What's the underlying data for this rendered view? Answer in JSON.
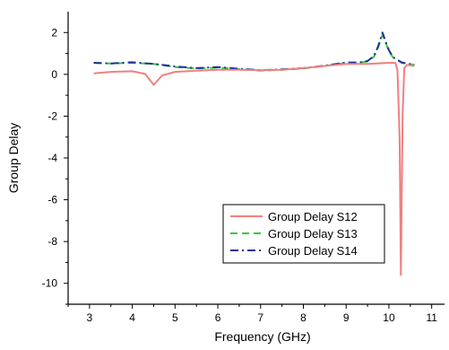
{
  "chart_data": {
    "type": "line",
    "title": "",
    "xlabel": "Frequency (GHz)",
    "ylabel": "Group Delay",
    "xlim": [
      2.5,
      11.3
    ],
    "ylim": [
      -11,
      3
    ],
    "xticks": [
      3,
      4,
      5,
      6,
      7,
      8,
      9,
      10,
      11
    ],
    "yticks": [
      2,
      0,
      -2,
      -4,
      -6,
      -8,
      -10
    ],
    "grid": false,
    "legend_position": "lower-right",
    "series": [
      {
        "name": "Group Delay S12",
        "color": "#f08080",
        "dash": "solid",
        "x": [
          3.1,
          3.5,
          4.0,
          4.3,
          4.5,
          4.7,
          5.0,
          5.5,
          6.0,
          6.5,
          7.0,
          7.5,
          8.0,
          8.5,
          9.0,
          9.5,
          10.0,
          10.15,
          10.2,
          10.25,
          10.28,
          10.32,
          10.36,
          10.42,
          10.6
        ],
        "y": [
          0.05,
          0.12,
          0.15,
          0.02,
          -0.5,
          -0.05,
          0.12,
          0.18,
          0.22,
          0.22,
          0.2,
          0.22,
          0.3,
          0.4,
          0.5,
          0.5,
          0.55,
          0.55,
          0.2,
          -3.0,
          -9.6,
          -2.0,
          0.3,
          0.45,
          0.4
        ]
      },
      {
        "name": "Group Delay S13",
        "color": "#33cc33",
        "dash": "dashed",
        "x": [
          3.1,
          3.5,
          4.0,
          4.5,
          5.0,
          5.5,
          6.0,
          6.5,
          7.0,
          7.5,
          8.0,
          8.5,
          9.0,
          9.3,
          9.5,
          9.65,
          9.75,
          9.85,
          9.92,
          10.0,
          10.1,
          10.3,
          10.6
        ],
        "y": [
          0.55,
          0.52,
          0.55,
          0.5,
          0.35,
          0.28,
          0.32,
          0.25,
          0.18,
          0.22,
          0.28,
          0.4,
          0.55,
          0.55,
          0.62,
          0.85,
          1.3,
          1.9,
          1.55,
          1.1,
          0.8,
          0.55,
          0.45
        ]
      },
      {
        "name": "Group Delay S14",
        "color": "#1f2f9f",
        "dash": "dashdot",
        "x": [
          3.1,
          3.5,
          4.0,
          4.5,
          5.0,
          5.5,
          6.0,
          6.5,
          7.0,
          7.5,
          8.0,
          8.5,
          9.0,
          9.3,
          9.5,
          9.65,
          9.75,
          9.85,
          9.92,
          10.0,
          10.1,
          10.3,
          10.6
        ],
        "y": [
          0.55,
          0.52,
          0.58,
          0.5,
          0.38,
          0.3,
          0.35,
          0.27,
          0.2,
          0.24,
          0.3,
          0.42,
          0.57,
          0.57,
          0.64,
          0.88,
          1.35,
          2.0,
          1.6,
          1.15,
          0.82,
          0.57,
          0.45
        ]
      }
    ]
  }
}
